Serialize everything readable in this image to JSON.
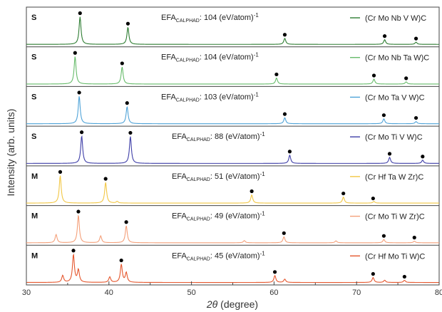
{
  "chart_data": {
    "type": "line",
    "xlabel_italic": "2θ",
    "xlabel_rest": " (degree)",
    "ylabel": "Intensity (arb. units)",
    "xlim": [
      30,
      80
    ],
    "xticks": [
      "30",
      "40",
      "50",
      "60",
      "70",
      "80"
    ],
    "efa_prefix": "EFA",
    "efa_sub": "CALPHAD",
    "series": [
      {
        "name": "(Cr Mo Nb V W)C",
        "tag": "S",
        "efa_value": ": 104 (eV/atom)",
        "efa_exp": "-1",
        "color": "#2e7d32",
        "peaks": [
          [
            36.5,
            1.0
          ],
          [
            42.3,
            0.62
          ],
          [
            61.3,
            0.22
          ],
          [
            73.4,
            0.17
          ],
          [
            77.2,
            0.08
          ]
        ],
        "markers": [
          36.5,
          42.3,
          61.3,
          73.4,
          77.2
        ]
      },
      {
        "name": "(Cr Mo Nb Ta W)C",
        "tag": "S",
        "efa_value": ": 104 (eV/atom)",
        "efa_exp": "-1",
        "color": "#66bb6a",
        "peaks": [
          [
            35.9,
            1.0
          ],
          [
            41.6,
            0.62
          ],
          [
            60.3,
            0.22
          ],
          [
            72.1,
            0.18
          ],
          [
            76.0,
            0.08
          ]
        ],
        "markers": [
          35.9,
          41.6,
          60.3,
          72.1,
          76.0
        ]
      },
      {
        "name": "(Cr Mo Ta V W)C",
        "tag": "S",
        "efa_value": ": 103 (eV/atom)",
        "efa_exp": "-1",
        "color": "#4fa3d8",
        "peaks": [
          [
            36.4,
            1.0
          ],
          [
            42.2,
            0.62
          ],
          [
            61.3,
            0.22
          ],
          [
            73.3,
            0.18
          ],
          [
            77.2,
            0.08
          ]
        ],
        "markers": [
          36.4,
          42.2,
          61.3,
          73.3,
          77.2
        ]
      },
      {
        "name": "(Cr Mo Ti V W)C",
        "tag": "S",
        "efa_value": ": 88 (eV/atom)",
        "efa_exp": "-1",
        "color": "#3f3fa8",
        "peaks": [
          [
            36.7,
            1.0
          ],
          [
            42.6,
            0.98
          ],
          [
            61.9,
            0.3
          ],
          [
            74.0,
            0.22
          ],
          [
            78.0,
            0.12
          ]
        ],
        "markers": [
          36.7,
          42.6,
          61.9,
          74.0,
          78.0
        ]
      },
      {
        "name": "(Cr Hf Ta W Zr)C",
        "tag": "M",
        "efa_value": ": 51 (eV/atom)",
        "efa_exp": "-1",
        "color": "#f2c744",
        "peaks": [
          [
            34.1,
            1.0
          ],
          [
            39.6,
            0.75
          ],
          [
            41.0,
            0.06
          ],
          [
            57.3,
            0.3
          ],
          [
            68.4,
            0.22
          ],
          [
            72.1,
            0.06
          ]
        ],
        "markers": [
          34.1,
          39.6,
          57.3,
          68.4,
          72.0
        ]
      },
      {
        "name": "(Cr Mo Ti W Zr)C",
        "tag": "M",
        "efa_value": ": 49 (eV/atom)",
        "efa_exp": "-1",
        "color": "#f4a07a",
        "peaks": [
          [
            33.6,
            0.3
          ],
          [
            36.3,
            1.0
          ],
          [
            39.0,
            0.25
          ],
          [
            42.1,
            0.62
          ],
          [
            56.4,
            0.08
          ],
          [
            61.2,
            0.22
          ],
          [
            67.5,
            0.07
          ],
          [
            73.3,
            0.12
          ],
          [
            77.0,
            0.06
          ]
        ],
        "markers": [
          36.3,
          42.1,
          61.2,
          73.3,
          77.0
        ]
      },
      {
        "name": "(Cr Hf Mo Ti W)C",
        "tag": "M",
        "efa_value": ": 45 (eV/atom)",
        "efa_exp": "-1",
        "color": "#e5572e",
        "peaks": [
          [
            34.4,
            0.25
          ],
          [
            35.7,
            1.0
          ],
          [
            36.3,
            0.45
          ],
          [
            40.1,
            0.2
          ],
          [
            41.5,
            0.65
          ],
          [
            42.1,
            0.35
          ],
          [
            60.1,
            0.25
          ],
          [
            61.3,
            0.12
          ],
          [
            72.0,
            0.18
          ],
          [
            73.4,
            0.08
          ],
          [
            75.8,
            0.08
          ]
        ],
        "markers": [
          35.7,
          41.5,
          60.1,
          72.0,
          75.8
        ]
      }
    ]
  }
}
